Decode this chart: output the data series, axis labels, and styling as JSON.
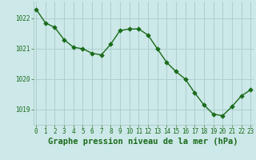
{
  "x": [
    0,
    1,
    2,
    3,
    4,
    5,
    6,
    7,
    8,
    9,
    10,
    11,
    12,
    13,
    14,
    15,
    16,
    17,
    18,
    19,
    20,
    21,
    22,
    23
  ],
  "y": [
    1022.3,
    1021.85,
    1021.7,
    1021.3,
    1021.05,
    1021.0,
    1020.85,
    1020.8,
    1021.15,
    1021.6,
    1021.65,
    1021.65,
    1021.45,
    1021.0,
    1020.55,
    1020.25,
    1020.0,
    1019.55,
    1019.15,
    1018.85,
    1018.8,
    1019.1,
    1019.45,
    1019.65
  ],
  "line_color": "#1a6b1a",
  "marker_color": "#1a6b1a",
  "bg_color": "#cce8e8",
  "grid_color": "#aacccc",
  "title": "Graphe pression niveau de la mer (hPa)",
  "title_color": "#1a6b1a",
  "ylim_min": 1018.5,
  "ylim_max": 1022.55,
  "xlim_min": -0.3,
  "xlim_max": 23.3,
  "yticks": [
    1019,
    1020,
    1021,
    1022
  ],
  "xticks": [
    0,
    1,
    2,
    3,
    4,
    5,
    6,
    7,
    8,
    9,
    10,
    11,
    12,
    13,
    14,
    15,
    16,
    17,
    18,
    19,
    20,
    21,
    22,
    23
  ],
  "tick_label_color": "#1a6b1a",
  "tick_label_size": 5.5,
  "title_fontsize": 7.5,
  "line_width": 1.0,
  "marker_size": 2.8
}
